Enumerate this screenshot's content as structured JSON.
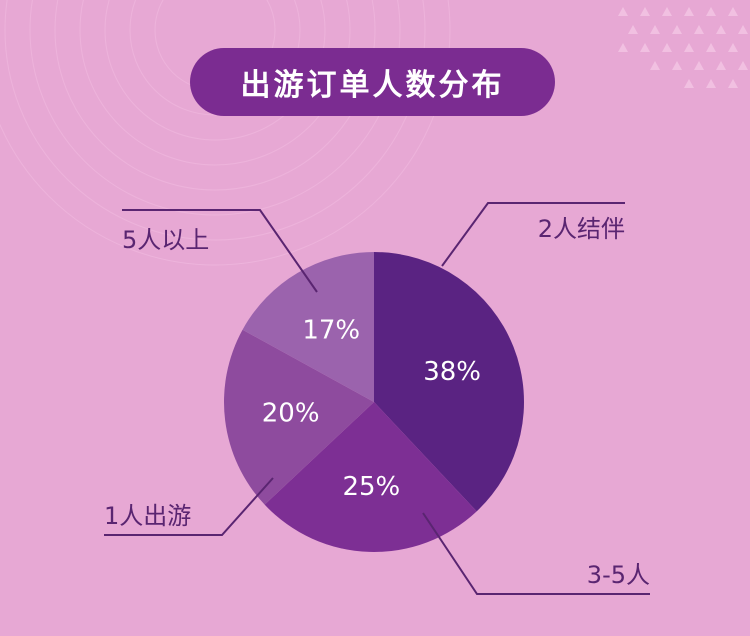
{
  "chart_data": {
    "type": "pie",
    "title": "出游订单人数分布",
    "categories": [
      "2人结伴",
      "3-5人",
      "1人出游",
      "5人以上"
    ],
    "values": [
      38,
      25,
      20,
      17
    ],
    "value_labels": [
      "38%",
      "25%",
      "20%",
      "17%"
    ],
    "colors": [
      "#5a2382",
      "#7d2f94",
      "#8e4b9e",
      "#9b63ad"
    ],
    "legend": "none",
    "grid": false
  },
  "colors": {
    "background": "#e7a8d4",
    "title_bg": "#7b2c91",
    "leader_line": "#5a2571"
  }
}
